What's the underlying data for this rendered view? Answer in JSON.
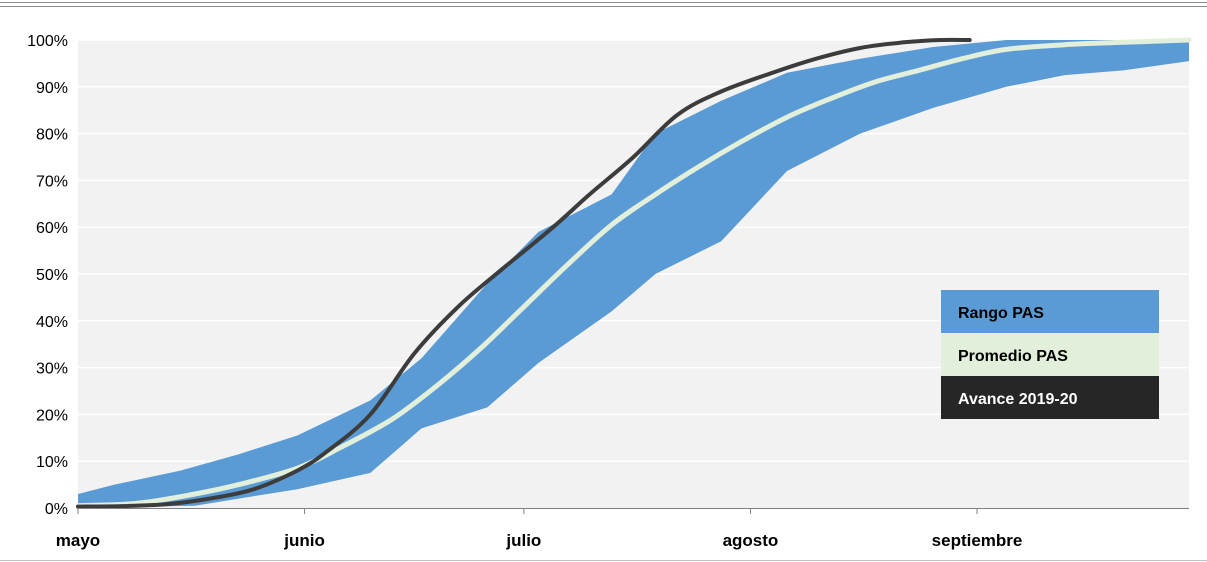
{
  "chart_data": {
    "type": "area",
    "title": "",
    "xlabel": "",
    "ylabel": "",
    "x_domain": [
      "2019-05-01",
      "2019-09-30"
    ],
    "x_ticks": [
      {
        "label": "mayo",
        "date": "2019-05-01"
      },
      {
        "label": "junio",
        "date": "2019-06-01"
      },
      {
        "label": "julio",
        "date": "2019-07-01"
      },
      {
        "label": "agosto",
        "date": "2019-08-01"
      },
      {
        "label": "septiembre",
        "date": "2019-09-01"
      }
    ],
    "ylim": [
      0,
      100
    ],
    "y_ticks": [
      "0%",
      "10%",
      "20%",
      "30%",
      "40%",
      "50%",
      "60%",
      "70%",
      "80%",
      "90%",
      "100%"
    ],
    "grid": true,
    "legend_position": "right",
    "series": [
      {
        "name": "Rango PAS",
        "kind": "band",
        "color": "#5b9bd5",
        "upper": [
          {
            "x": "2019-05-01",
            "y": 3
          },
          {
            "x": "2019-05-06",
            "y": 5
          },
          {
            "x": "2019-05-15",
            "y": 8
          },
          {
            "x": "2019-05-23",
            "y": 11.5
          },
          {
            "x": "2019-05-31",
            "y": 15.5
          },
          {
            "x": "2019-06-10",
            "y": 23
          },
          {
            "x": "2019-06-17",
            "y": 32
          },
          {
            "x": "2019-06-26",
            "y": 48
          },
          {
            "x": "2019-07-03",
            "y": 59
          },
          {
            "x": "2019-07-13",
            "y": 67
          },
          {
            "x": "2019-07-19",
            "y": 80
          },
          {
            "x": "2019-07-28",
            "y": 87
          },
          {
            "x": "2019-08-06",
            "y": 93
          },
          {
            "x": "2019-08-16",
            "y": 96
          },
          {
            "x": "2019-08-26",
            "y": 98.5
          },
          {
            "x": "2019-09-05",
            "y": 100
          },
          {
            "x": "2019-09-30",
            "y": 100
          }
        ],
        "lower": [
          {
            "x": "2019-05-01",
            "y": 0
          },
          {
            "x": "2019-05-17",
            "y": 0.5
          },
          {
            "x": "2019-05-23",
            "y": 2
          },
          {
            "x": "2019-05-31",
            "y": 4
          },
          {
            "x": "2019-06-10",
            "y": 7.5
          },
          {
            "x": "2019-06-17",
            "y": 17
          },
          {
            "x": "2019-06-26",
            "y": 21.5
          },
          {
            "x": "2019-07-03",
            "y": 31
          },
          {
            "x": "2019-07-13",
            "y": 42
          },
          {
            "x": "2019-07-19",
            "y": 50
          },
          {
            "x": "2019-07-28",
            "y": 57
          },
          {
            "x": "2019-08-06",
            "y": 72
          },
          {
            "x": "2019-08-16",
            "y": 80
          },
          {
            "x": "2019-08-26",
            "y": 85.5
          },
          {
            "x": "2019-09-05",
            "y": 90
          },
          {
            "x": "2019-09-13",
            "y": 92.5
          },
          {
            "x": "2019-09-21",
            "y": 93.5
          },
          {
            "x": "2019-09-30",
            "y": 95.5
          }
        ]
      },
      {
        "name": "Promedio PAS",
        "kind": "line",
        "color": "#e2efda",
        "points": [
          {
            "x": "2019-05-01",
            "y": 0.5
          },
          {
            "x": "2019-05-09",
            "y": 1
          },
          {
            "x": "2019-05-17",
            "y": 3
          },
          {
            "x": "2019-05-23",
            "y": 5
          },
          {
            "x": "2019-05-31",
            "y": 8.5
          },
          {
            "x": "2019-06-06",
            "y": 13
          },
          {
            "x": "2019-06-13",
            "y": 19
          },
          {
            "x": "2019-06-19",
            "y": 26
          },
          {
            "x": "2019-06-25",
            "y": 34
          },
          {
            "x": "2019-07-01",
            "y": 43
          },
          {
            "x": "2019-07-07",
            "y": 52
          },
          {
            "x": "2019-07-13",
            "y": 60.5
          },
          {
            "x": "2019-07-19",
            "y": 67
          },
          {
            "x": "2019-07-25",
            "y": 73
          },
          {
            "x": "2019-07-31",
            "y": 78.5
          },
          {
            "x": "2019-08-06",
            "y": 83.5
          },
          {
            "x": "2019-08-12",
            "y": 87.5
          },
          {
            "x": "2019-08-18",
            "y": 91
          },
          {
            "x": "2019-08-24",
            "y": 93.5
          },
          {
            "x": "2019-08-30",
            "y": 96
          },
          {
            "x": "2019-09-05",
            "y": 98
          },
          {
            "x": "2019-09-13",
            "y": 99
          },
          {
            "x": "2019-09-21",
            "y": 99.5
          },
          {
            "x": "2019-09-30",
            "y": 100
          }
        ]
      },
      {
        "name": "Avance 2019-20",
        "kind": "line",
        "color": "#3c3c3c",
        "points": [
          {
            "x": "2019-05-01",
            "y": 0.3
          },
          {
            "x": "2019-05-07",
            "y": 0.4
          },
          {
            "x": "2019-05-13",
            "y": 0.8
          },
          {
            "x": "2019-05-19",
            "y": 2
          },
          {
            "x": "2019-05-25",
            "y": 4
          },
          {
            "x": "2019-05-31",
            "y": 8
          },
          {
            "x": "2019-06-04",
            "y": 12
          },
          {
            "x": "2019-06-10",
            "y": 20
          },
          {
            "x": "2019-06-16",
            "y": 33
          },
          {
            "x": "2019-06-22",
            "y": 43
          },
          {
            "x": "2019-06-28",
            "y": 51
          },
          {
            "x": "2019-07-05",
            "y": 60
          },
          {
            "x": "2019-07-10",
            "y": 67
          },
          {
            "x": "2019-07-16",
            "y": 75
          },
          {
            "x": "2019-07-22",
            "y": 84
          },
          {
            "x": "2019-07-28",
            "y": 89
          },
          {
            "x": "2019-08-04",
            "y": 93
          },
          {
            "x": "2019-08-10",
            "y": 96
          },
          {
            "x": "2019-08-16",
            "y": 98.3
          },
          {
            "x": "2019-08-22",
            "y": 99.5
          },
          {
            "x": "2019-08-27",
            "y": 100
          },
          {
            "x": "2019-08-31",
            "y": 100
          }
        ]
      }
    ],
    "legend": [
      {
        "label": "Rango PAS",
        "bg": "#5b9bd5",
        "text_color": "#000000"
      },
      {
        "label": "Promedio PAS",
        "bg": "#e2efda",
        "text_color": "#000000"
      },
      {
        "label": "Avance 2019-20",
        "bg": "#262626",
        "text_color": "#ffffff"
      }
    ],
    "colors": {
      "plot_background": "#f2f2f2",
      "gridline": "#ffffff"
    }
  }
}
